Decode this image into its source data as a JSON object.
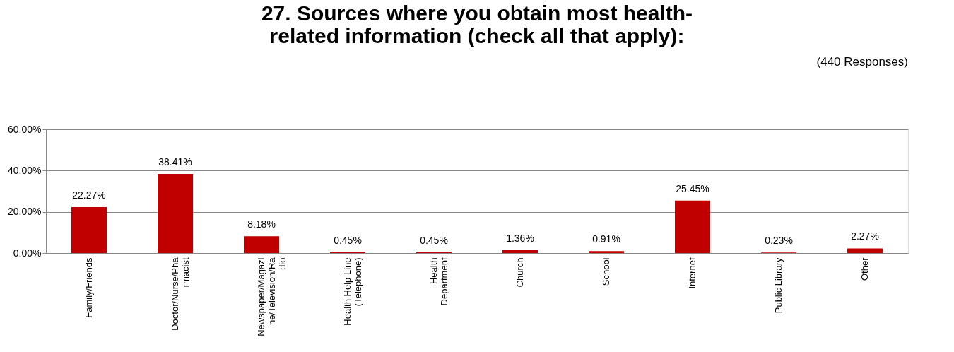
{
  "chart_data": {
    "type": "bar",
    "title": "27.  Sources where you obtain most health-related information (check all that apply):",
    "annotations": [
      "(440 Responses)"
    ],
    "categories": [
      "Family/Friends",
      "Doctor/Nurse/Pharmacist",
      "Newspaper/Magazine/Television/Radio",
      "Health Help Line (Telephone)",
      "Health Department",
      "Church",
      "School",
      "Internet",
      "Public Library",
      "Other"
    ],
    "values": [
      22.27,
      38.41,
      8.18,
      0.45,
      0.45,
      1.36,
      0.91,
      25.45,
      0.23,
      2.27
    ],
    "value_labels": [
      "22.27%",
      "38.41%",
      "8.18%",
      "0.45%",
      "0.45%",
      "1.36%",
      "0.91%",
      "25.45%",
      "0.23%",
      "2.27%"
    ],
    "color": "#c00000",
    "ylim": [
      0,
      60
    ],
    "yticks": [
      {
        "value": 0,
        "label": "0.00%"
      },
      {
        "value": 20,
        "label": "20.00%"
      },
      {
        "value": 40,
        "label": "40.00%"
      },
      {
        "value": 60,
        "label": "60.00%"
      }
    ],
    "grid": "y"
  }
}
